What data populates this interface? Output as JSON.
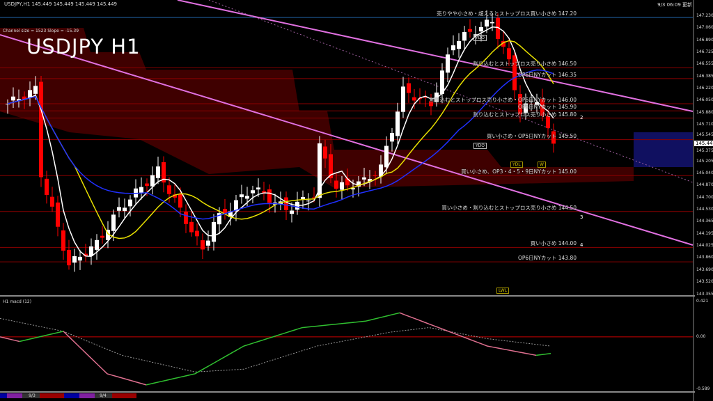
{
  "header": {
    "symbol_line": "USDJPY,H1  145.449 145.449 145.449 145.449",
    "channel_info": "Channel size = 1523 Slope = -15.39",
    "title": "USDJPY H1",
    "timestamp": "9/3 06:09 更新"
  },
  "macd_label": "H1  macd (12)",
  "current_price": "145.449",
  "colors": {
    "background": "#000000",
    "bull": "#ffffff",
    "bear": "#ff0000",
    "level_line": "#8b0000",
    "channel": "#e070e0",
    "ma_white": "#ffffff",
    "ma_yellow": "#e8e000",
    "ma_blue": "#2030ff",
    "macd_up": "#30c030",
    "macd_down": "#e07090",
    "signal": "#999999"
  },
  "levels": [
    {
      "price": 147.2,
      "label": "売りやや小さめ・超えるとストップロス買い小さめ 147.20"
    },
    {
      "price": 146.5,
      "label": "割り込むとストップロス売り小さめ 146.50"
    },
    {
      "price": 146.35,
      "label": "OP6日NYカット 146.35"
    },
    {
      "price": 146.0,
      "label": "割り込むとストップロス売り小さめ・OP6日NYカット 146.00"
    },
    {
      "price": 145.9,
      "label": "OP5日NYカット 145.90"
    },
    {
      "price": 145.8,
      "label": "割り込むとストップロス売り小さめ 145.80"
    },
    {
      "price": 145.5,
      "label": "買い小さめ・OP5日NYカット 145.50"
    },
    {
      "price": 145.0,
      "label": "買い小さめ、OP3・4・5・9日NYカット 145.00"
    },
    {
      "price": 144.5,
      "label": "買い小さめ・割り込むとストップロス売り小さめ 144.50"
    },
    {
      "price": 144.0,
      "label": "買い小さめ 144.00"
    },
    {
      "price": 143.8,
      "label": "OP6日NYカット 143.80"
    }
  ],
  "markers": [
    "YDO",
    "YDO",
    "YDL",
    "W",
    "LWL",
    "2",
    "3",
    "4"
  ],
  "chart_data": {
    "type": "candlestick",
    "title": "USDJPY H1",
    "ylim": [
      143.355,
      147.23
    ],
    "y_ticks": [
      "147.230",
      "147.060",
      "146.890",
      "146.725",
      "146.555",
      "146.385",
      "146.220",
      "146.050",
      "145.880",
      "145.710",
      "145.545",
      "145.375",
      "145.205",
      "145.040",
      "144.870",
      "144.700",
      "144.530",
      "144.365",
      "144.195",
      "144.025",
      "143.860",
      "143.690",
      "143.520",
      "143.355"
    ],
    "close_keypoints": [
      [
        0,
        146.0
      ],
      [
        5,
        146.2
      ],
      [
        6,
        145.02
      ],
      [
        11,
        143.76
      ],
      [
        16,
        144.05
      ],
      [
        20,
        144.53
      ],
      [
        27,
        145.07
      ],
      [
        35,
        143.96
      ],
      [
        37,
        144.35
      ],
      [
        44,
        144.83
      ],
      [
        50,
        144.53
      ],
      [
        55,
        144.73
      ],
      [
        56,
        145.4
      ],
      [
        59,
        144.83
      ],
      [
        64,
        144.92
      ],
      [
        67,
        145.11
      ],
      [
        71,
        146.18
      ],
      [
        76,
        145.99
      ],
      [
        80,
        146.86
      ],
      [
        87,
        147.15
      ],
      [
        90,
        146.57
      ],
      [
        92,
        145.89
      ],
      [
        95,
        146.08
      ],
      [
        97,
        145.6
      ],
      [
        98,
        145.45
      ]
    ],
    "macd": {
      "ylim": [
        -0.589,
        0.421
      ],
      "zero_label": "0.00",
      "ticks": [
        "0.421",
        "0.00",
        "-0.589"
      ],
      "line_keypoints": [
        [
          0,
          0.0
        ],
        [
          4,
          -0.05
        ],
        [
          13,
          0.06
        ],
        [
          22,
          -0.4
        ],
        [
          30,
          -0.52
        ],
        [
          40,
          -0.4
        ],
        [
          50,
          -0.1
        ],
        [
          62,
          0.1
        ],
        [
          75,
          0.17
        ],
        [
          82,
          0.26
        ],
        [
          90,
          0.1
        ],
        [
          100,
          -0.1
        ],
        [
          110,
          -0.2
        ],
        [
          113,
          -0.18
        ]
      ],
      "signal_keypoints": [
        [
          0,
          0.2
        ],
        [
          13,
          0.06
        ],
        [
          25,
          -0.2
        ],
        [
          40,
          -0.38
        ],
        [
          50,
          -0.35
        ],
        [
          65,
          -0.1
        ],
        [
          80,
          0.05
        ],
        [
          88,
          0.1
        ],
        [
          100,
          -0.02
        ],
        [
          113,
          -0.1
        ]
      ]
    },
    "date_labels": [
      "9/3",
      "9/4"
    ]
  }
}
